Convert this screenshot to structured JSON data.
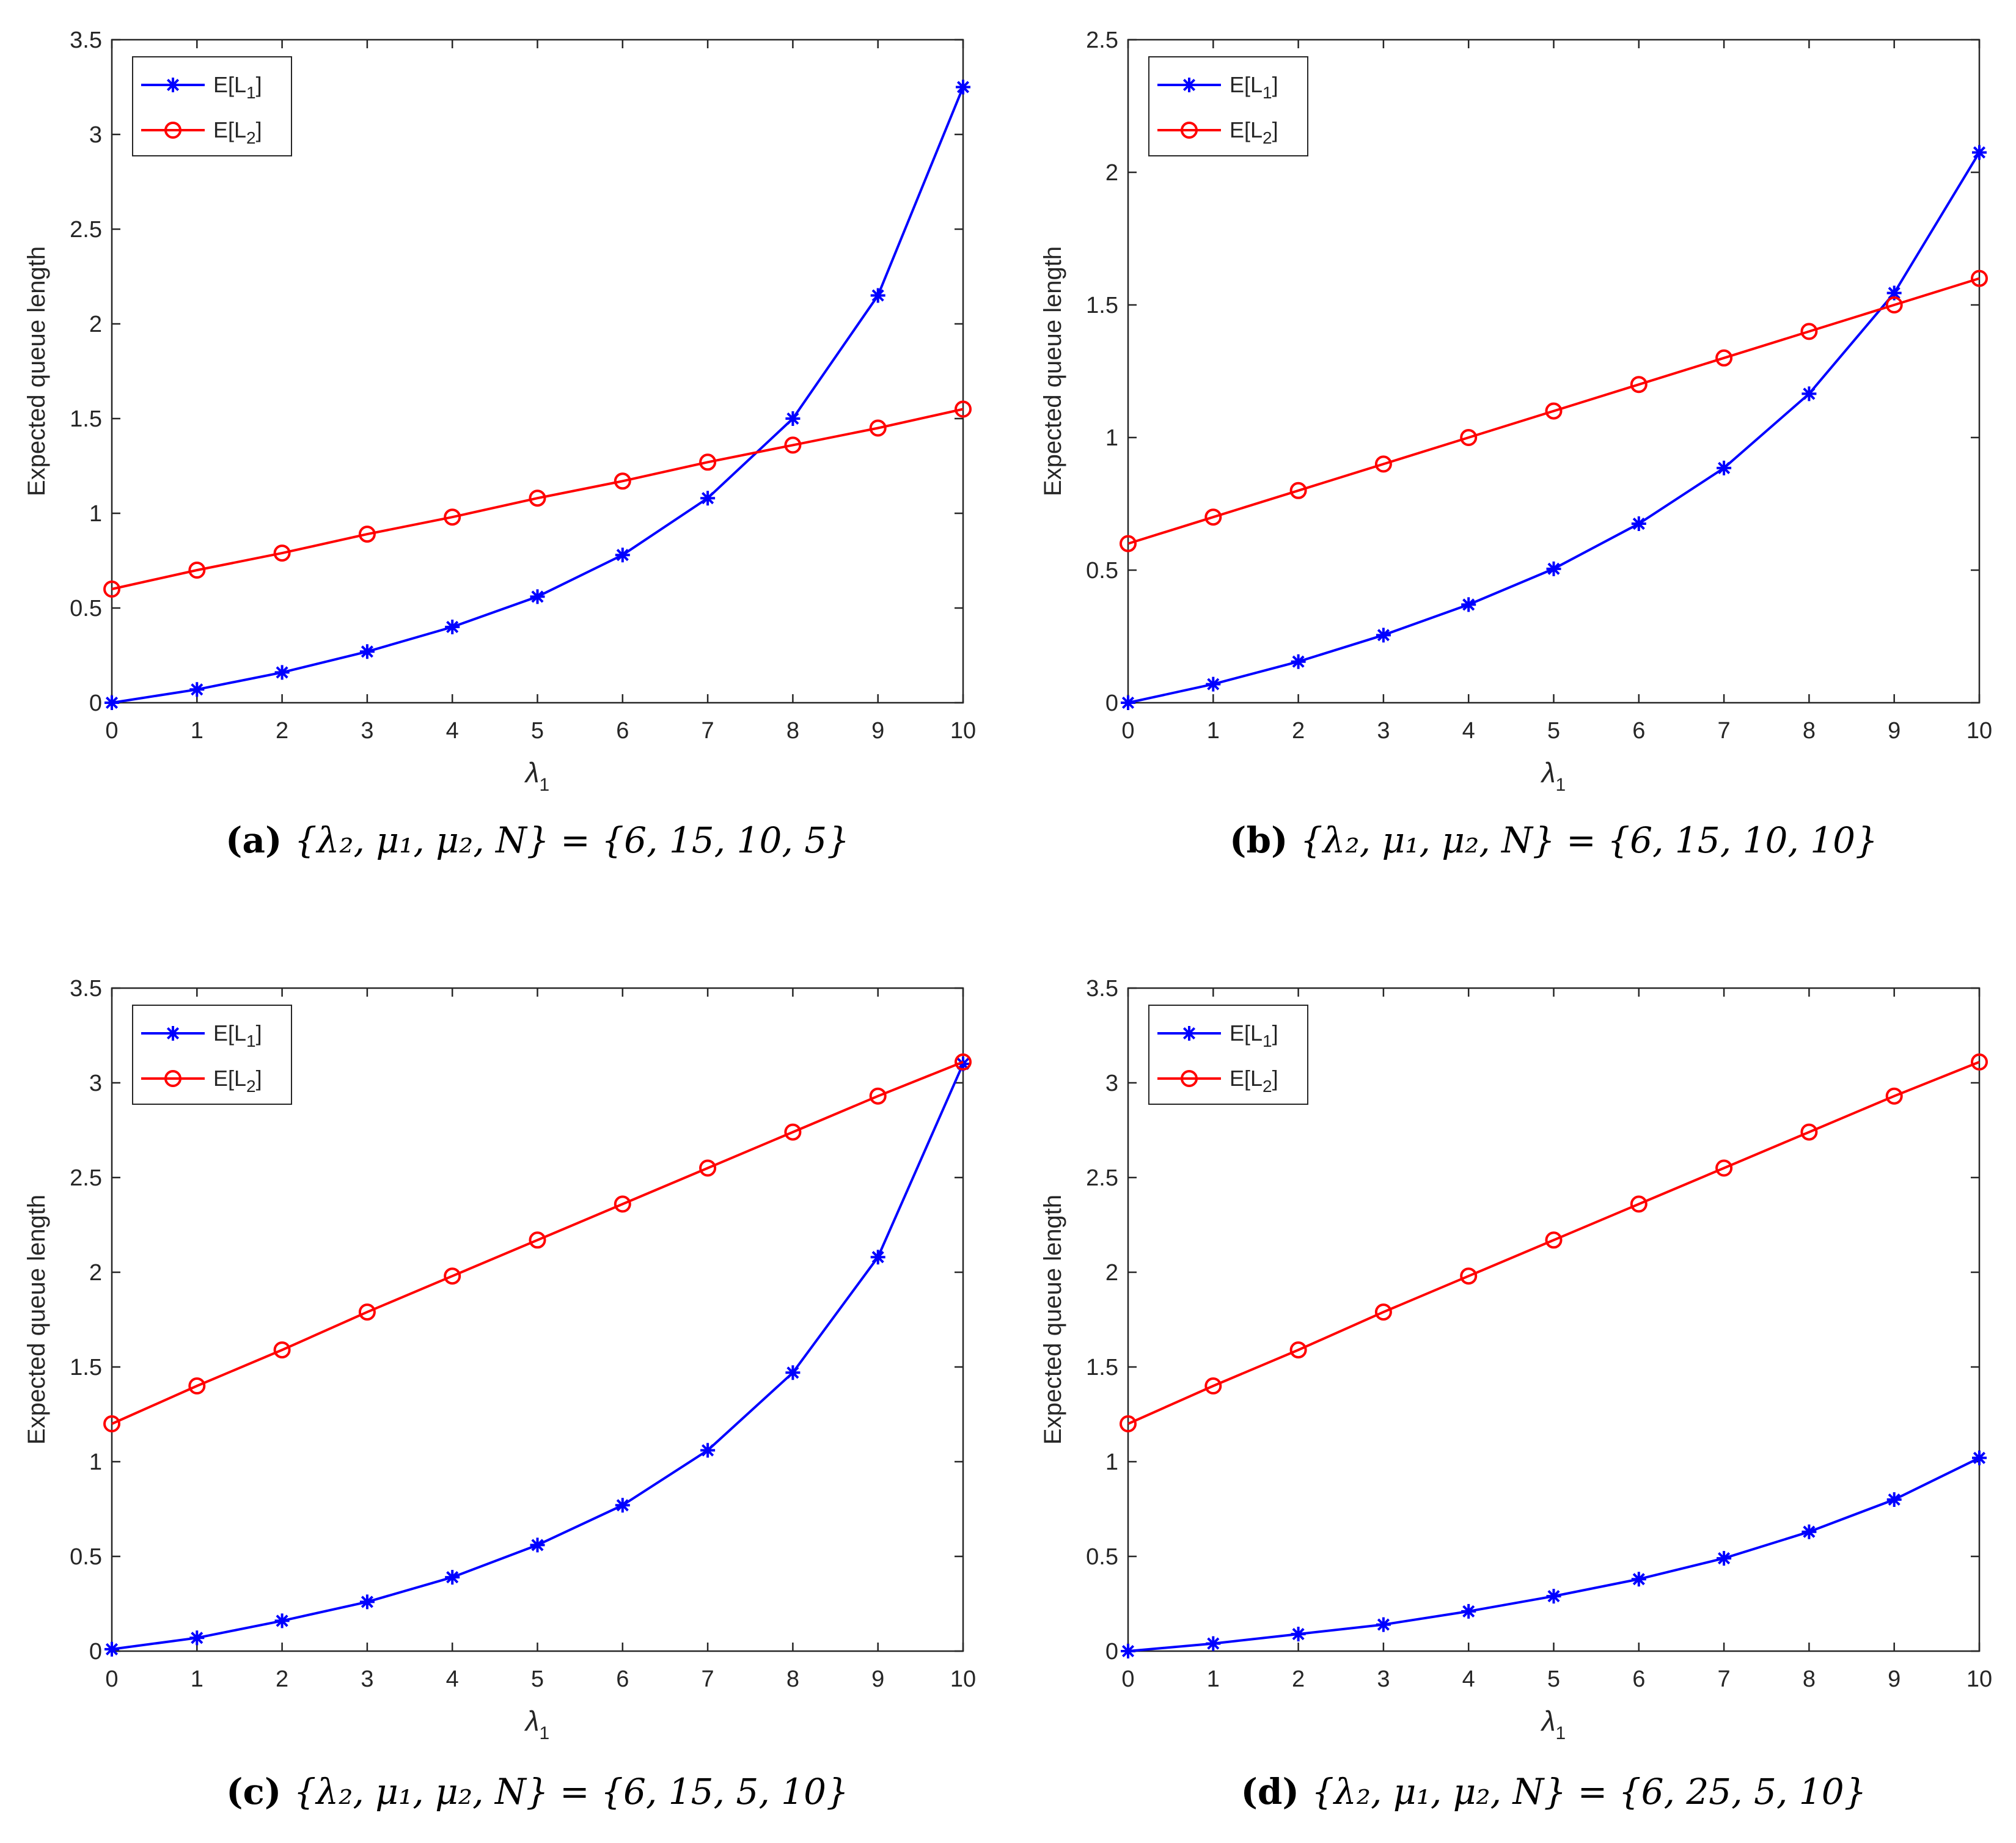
{
  "figure": {
    "colors": {
      "series_1": "#0000ff",
      "series_2": "#ff0000",
      "axis": "#262626"
    }
  },
  "chart_data": [
    {
      "id": "a",
      "type": "line",
      "caption": {
        "tag": "(a)",
        "text": "{λ₂, μ₁, μ₂, N} = {6, 15, 10, 5}"
      },
      "xlabel": "λ1",
      "ylabel": "Expected queue length",
      "xlim": [
        0,
        10
      ],
      "ylim": [
        0,
        3.5
      ],
      "xticks": [
        0,
        1,
        2,
        3,
        4,
        5,
        6,
        7,
        8,
        9,
        10
      ],
      "yticks": [
        0,
        0.5,
        1,
        1.5,
        2,
        2.5,
        3,
        3.5
      ],
      "ytick_labels": [
        "0",
        "0.5",
        "1",
        "1.5",
        "2",
        "2.5",
        "3",
        "3.5"
      ],
      "legend_position": "top-left",
      "x": [
        0,
        1,
        2,
        3,
        4,
        5,
        6,
        7,
        8,
        9,
        10
      ],
      "series": [
        {
          "name": "E[L1]",
          "label_main": "E[L",
          "label_sub": "1",
          "label_end": "]",
          "marker": "asterisk",
          "color": "#0000ff",
          "values": [
            0,
            0.07,
            0.16,
            0.27,
            0.4,
            0.56,
            0.78,
            1.08,
            1.5,
            2.15,
            3.25
          ]
        },
        {
          "name": "E[L2]",
          "label_main": "E[L",
          "label_sub": "2",
          "label_end": "]",
          "marker": "circle",
          "color": "#ff0000",
          "values": [
            0.6,
            0.7,
            0.79,
            0.89,
            0.98,
            1.08,
            1.17,
            1.27,
            1.36,
            1.45,
            1.55
          ]
        }
      ]
    },
    {
      "id": "b",
      "type": "line",
      "caption": {
        "tag": "(b)",
        "text": "{λ₂, μ₁, μ₂, N} = {6, 15, 10, 10}"
      },
      "xlabel": "λ1",
      "ylabel": "Expected queue length",
      "xlim": [
        0,
        10
      ],
      "ylim": [
        0,
        2.5
      ],
      "xticks": [
        0,
        1,
        2,
        3,
        4,
        5,
        6,
        7,
        8,
        9,
        10
      ],
      "yticks": [
        0,
        0.5,
        1,
        1.5,
        2,
        2.5
      ],
      "ytick_labels": [
        "0",
        "0.5",
        "1",
        "1.5",
        "2",
        "2.5"
      ],
      "legend_position": "top-left",
      "x": [
        0,
        1,
        2,
        3,
        4,
        5,
        6,
        7,
        8,
        9,
        10
      ],
      "series": [
        {
          "name": "E[L1]",
          "label_main": "E[L",
          "label_sub": "1",
          "label_end": "]",
          "marker": "asterisk",
          "color": "#0000ff",
          "values": [
            0,
            0.07,
            0.155,
            0.255,
            0.37,
            0.505,
            0.675,
            0.885,
            1.165,
            1.545,
            2.075
          ]
        },
        {
          "name": "E[L2]",
          "label_main": "E[L",
          "label_sub": "2",
          "label_end": "]",
          "marker": "circle",
          "color": "#ff0000",
          "values": [
            0.6,
            0.7,
            0.8,
            0.9,
            1.0,
            1.1,
            1.2,
            1.3,
            1.4,
            1.5,
            1.6
          ]
        }
      ]
    },
    {
      "id": "c",
      "type": "line",
      "caption": {
        "tag": "(c)",
        "text": "{λ₂, μ₁, μ₂, N} = {6, 15, 5, 10}"
      },
      "xlabel": "λ1",
      "ylabel": "Expected queue length",
      "xlim": [
        0,
        10
      ],
      "ylim": [
        0,
        3.5
      ],
      "xticks": [
        0,
        1,
        2,
        3,
        4,
        5,
        6,
        7,
        8,
        9,
        10
      ],
      "yticks": [
        0,
        0.5,
        1,
        1.5,
        2,
        2.5,
        3,
        3.5
      ],
      "ytick_labels": [
        "0",
        "0.5",
        "1",
        "1.5",
        "2",
        "2.5",
        "3",
        "3.5"
      ],
      "legend_position": "top-left",
      "x": [
        0,
        1,
        2,
        3,
        4,
        5,
        6,
        7,
        8,
        9,
        10
      ],
      "series": [
        {
          "name": "E[L1]",
          "label_main": "E[L",
          "label_sub": "1",
          "label_end": "]",
          "marker": "asterisk",
          "color": "#0000ff",
          "values": [
            0.01,
            0.07,
            0.16,
            0.26,
            0.39,
            0.56,
            0.77,
            1.06,
            1.47,
            2.08,
            3.1
          ]
        },
        {
          "name": "E[L2]",
          "label_main": "E[L",
          "label_sub": "2",
          "label_end": "]",
          "marker": "circle",
          "color": "#ff0000",
          "values": [
            1.2,
            1.4,
            1.59,
            1.79,
            1.98,
            2.17,
            2.36,
            2.55,
            2.74,
            2.93,
            3.11
          ]
        }
      ]
    },
    {
      "id": "d",
      "type": "line",
      "caption": {
        "tag": "(d)",
        "text": "{λ₂, μ₁, μ₂, N} = {6, 25, 5, 10}"
      },
      "xlabel": "λ1",
      "ylabel": "Expected queue length",
      "xlim": [
        0,
        10
      ],
      "ylim": [
        0,
        3.5
      ],
      "xticks": [
        0,
        1,
        2,
        3,
        4,
        5,
        6,
        7,
        8,
        9,
        10
      ],
      "yticks": [
        0,
        0.5,
        1,
        1.5,
        2,
        2.5,
        3,
        3.5
      ],
      "ytick_labels": [
        "0",
        "0.5",
        "1",
        "1.5",
        "2",
        "2.5",
        "3",
        "3.5"
      ],
      "legend_position": "top-left",
      "x": [
        0,
        1,
        2,
        3,
        4,
        5,
        6,
        7,
        8,
        9,
        10
      ],
      "series": [
        {
          "name": "E[L1]",
          "label_main": "E[L",
          "label_sub": "1",
          "label_end": "]",
          "marker": "asterisk",
          "color": "#0000ff",
          "values": [
            0,
            0.04,
            0.09,
            0.14,
            0.21,
            0.29,
            0.38,
            0.49,
            0.63,
            0.8,
            1.02
          ]
        },
        {
          "name": "E[L2]",
          "label_main": "E[L",
          "label_sub": "2",
          "label_end": "]",
          "marker": "circle",
          "color": "#ff0000",
          "values": [
            1.2,
            1.4,
            1.59,
            1.79,
            1.98,
            2.17,
            2.36,
            2.55,
            2.74,
            2.93,
            3.11
          ]
        }
      ]
    }
  ]
}
